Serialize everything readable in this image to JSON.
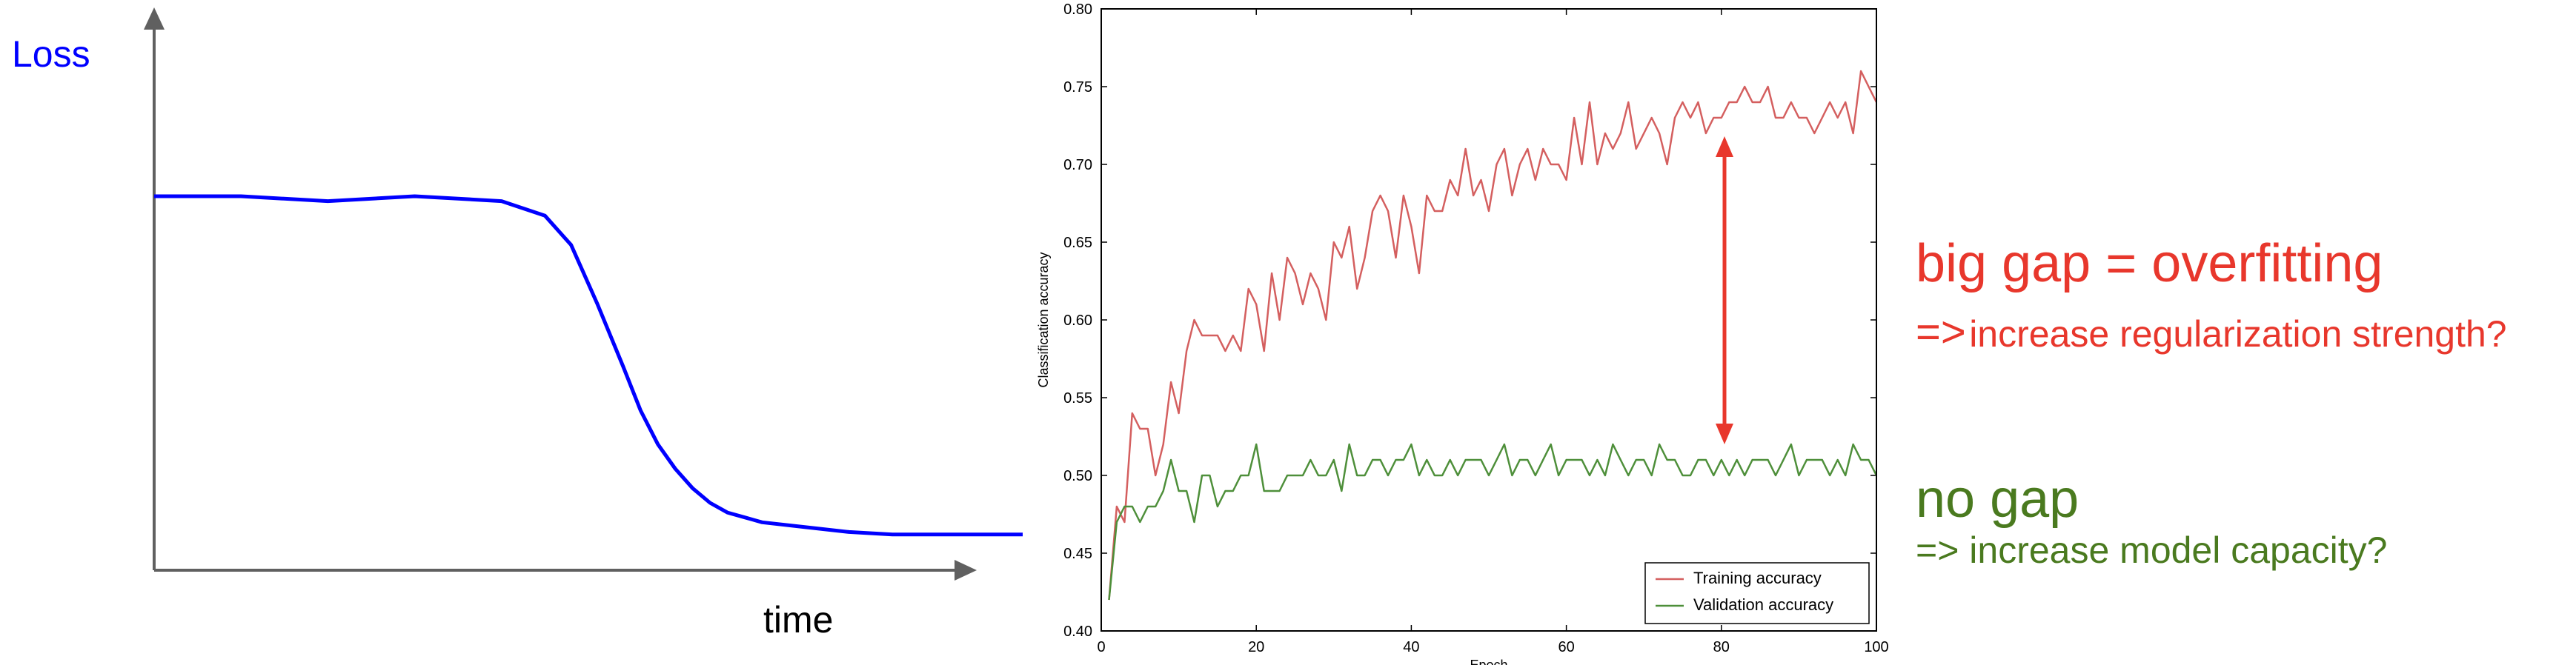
{
  "loss_panel": {
    "ylabel": "Loss",
    "xlabel": "time",
    "curve": {
      "x": [
        0,
        5,
        10,
        20,
        30,
        40,
        45,
        48,
        51,
        54,
        56,
        58,
        60,
        62,
        64,
        66,
        68,
        70,
        75,
        80,
        85,
        90,
        95,
        100
      ],
      "y": [
        0.7,
        0.7,
        0.7,
        0.69,
        0.7,
        0.69,
        0.66,
        0.6,
        0.48,
        0.35,
        0.26,
        0.19,
        0.14,
        0.1,
        0.07,
        0.05,
        0.04,
        0.03,
        0.02,
        0.01,
        0.005,
        0.005,
        0.005,
        0.005
      ]
    }
  },
  "chart_data": {
    "type": "line",
    "title": "",
    "xlabel": "Epoch",
    "ylabel": "Classification accuracy",
    "xlim": [
      0,
      100
    ],
    "ylim": [
      0.4,
      0.8
    ],
    "x_ticks": [
      "0",
      "20",
      "40",
      "60",
      "80",
      "100"
    ],
    "y_ticks": [
      "0.40",
      "0.45",
      "0.50",
      "0.55",
      "0.60",
      "0.65",
      "0.70",
      "0.75",
      "0.80"
    ],
    "legend_position": "bottom-right",
    "grid": false,
    "series": [
      {
        "name": "Training accuracy",
        "color": "#d45f5f",
        "x": [
          1,
          2,
          3,
          4,
          5,
          6,
          7,
          8,
          9,
          10,
          11,
          12,
          13,
          14,
          15,
          16,
          17,
          18,
          19,
          20,
          21,
          22,
          23,
          24,
          25,
          26,
          27,
          28,
          29,
          30,
          31,
          32,
          33,
          34,
          35,
          36,
          37,
          38,
          39,
          40,
          41,
          42,
          43,
          44,
          45,
          46,
          47,
          48,
          49,
          50,
          51,
          52,
          53,
          54,
          55,
          56,
          57,
          58,
          59,
          60,
          61,
          62,
          63,
          64,
          65,
          66,
          67,
          68,
          69,
          70,
          71,
          72,
          73,
          74,
          75,
          76,
          77,
          78,
          79,
          80,
          81,
          82,
          83,
          84,
          85,
          86,
          87,
          88,
          89,
          90,
          91,
          92,
          93,
          94,
          95,
          96,
          97,
          98,
          99,
          100
        ],
        "y": [
          0.42,
          0.48,
          0.47,
          0.54,
          0.53,
          0.53,
          0.5,
          0.52,
          0.56,
          0.54,
          0.58,
          0.6,
          0.59,
          0.59,
          0.59,
          0.58,
          0.59,
          0.58,
          0.62,
          0.61,
          0.58,
          0.63,
          0.6,
          0.64,
          0.63,
          0.61,
          0.63,
          0.62,
          0.6,
          0.65,
          0.64,
          0.66,
          0.62,
          0.64,
          0.67,
          0.68,
          0.67,
          0.64,
          0.68,
          0.66,
          0.63,
          0.68,
          0.67,
          0.67,
          0.69,
          0.68,
          0.71,
          0.68,
          0.69,
          0.67,
          0.7,
          0.71,
          0.68,
          0.7,
          0.71,
          0.69,
          0.71,
          0.7,
          0.7,
          0.69,
          0.73,
          0.7,
          0.74,
          0.7,
          0.72,
          0.71,
          0.72,
          0.74,
          0.71,
          0.72,
          0.73,
          0.72,
          0.7,
          0.73,
          0.74,
          0.73,
          0.74,
          0.72,
          0.73,
          0.73,
          0.74,
          0.74,
          0.75,
          0.74,
          0.74,
          0.75,
          0.73,
          0.73,
          0.74,
          0.73,
          0.73,
          0.72,
          0.73,
          0.74,
          0.73,
          0.74,
          0.72,
          0.76,
          0.75,
          0.74
        ]
      },
      {
        "name": "Validation accuracy",
        "color": "#4e8f3a",
        "x": [
          1,
          2,
          3,
          4,
          5,
          6,
          7,
          8,
          9,
          10,
          11,
          12,
          13,
          14,
          15,
          16,
          17,
          18,
          19,
          20,
          21,
          22,
          23,
          24,
          25,
          26,
          27,
          28,
          29,
          30,
          31,
          32,
          33,
          34,
          35,
          36,
          37,
          38,
          39,
          40,
          41,
          42,
          43,
          44,
          45,
          46,
          47,
          48,
          49,
          50,
          51,
          52,
          53,
          54,
          55,
          56,
          57,
          58,
          59,
          60,
          61,
          62,
          63,
          64,
          65,
          66,
          67,
          68,
          69,
          70,
          71,
          72,
          73,
          74,
          75,
          76,
          77,
          78,
          79,
          80,
          81,
          82,
          83,
          84,
          85,
          86,
          87,
          88,
          89,
          90,
          91,
          92,
          93,
          94,
          95,
          96,
          97,
          98,
          99,
          100
        ],
        "y": [
          0.42,
          0.47,
          0.48,
          0.48,
          0.47,
          0.48,
          0.48,
          0.49,
          0.51,
          0.49,
          0.49,
          0.47,
          0.5,
          0.5,
          0.48,
          0.49,
          0.49,
          0.5,
          0.5,
          0.52,
          0.49,
          0.49,
          0.49,
          0.5,
          0.5,
          0.5,
          0.51,
          0.5,
          0.5,
          0.51,
          0.49,
          0.52,
          0.5,
          0.5,
          0.51,
          0.51,
          0.5,
          0.51,
          0.51,
          0.52,
          0.5,
          0.51,
          0.5,
          0.5,
          0.51,
          0.5,
          0.51,
          0.51,
          0.51,
          0.5,
          0.51,
          0.52,
          0.5,
          0.51,
          0.51,
          0.5,
          0.51,
          0.52,
          0.5,
          0.51,
          0.51,
          0.51,
          0.5,
          0.51,
          0.5,
          0.52,
          0.51,
          0.5,
          0.51,
          0.51,
          0.5,
          0.52,
          0.51,
          0.51,
          0.5,
          0.5,
          0.51,
          0.51,
          0.5,
          0.51,
          0.5,
          0.51,
          0.5,
          0.51,
          0.51,
          0.51,
          0.5,
          0.51,
          0.52,
          0.5,
          0.51,
          0.51,
          0.51,
          0.5,
          0.51,
          0.5,
          0.52,
          0.51,
          0.51,
          0.5
        ]
      }
    ]
  },
  "annotations": {
    "arrow_color": "#e8372c",
    "big_gap_title": "big gap = overfitting",
    "big_gap_arrow": "=>",
    "big_gap_hint": "increase regularization strength?",
    "no_gap_title": "no gap",
    "no_gap_hint": "=> increase model capacity?"
  }
}
